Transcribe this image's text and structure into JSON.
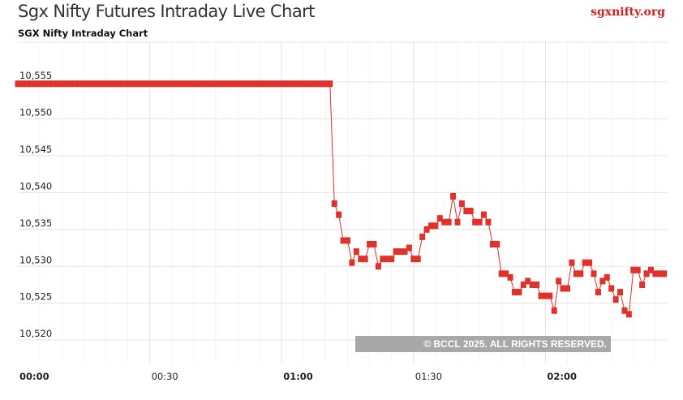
{
  "header": {
    "title": "Sgx Nifty Futures Intraday Live Chart",
    "brand": "sgxnifty.org"
  },
  "chart_data": {
    "type": "line",
    "title": "SGX Nifty Intraday Chart",
    "xlabel": "",
    "ylabel": "",
    "x_ticks": [
      "00:00",
      "00:30",
      "01:00",
      "01:30",
      "02:00"
    ],
    "y_ticks": [
      "10,520",
      "10,525",
      "10,530",
      "10,535",
      "10,540",
      "10,545",
      "10,550",
      "10,555"
    ],
    "ylim": [
      10517,
      10560
    ],
    "xlim": [
      "00:00",
      "02:28"
    ],
    "grid": true,
    "line_color": "#e0312b",
    "watermark": "© BCCL 2025. ALL RIGHTS RESERVED.",
    "flat": {
      "from": "00:00",
      "to": "01:11",
      "value": 10554.75
    },
    "points": [
      [
        "01:12",
        10538.5
      ],
      [
        "01:13",
        10537
      ],
      [
        "01:14",
        10533.5
      ],
      [
        "01:15",
        10533.5
      ],
      [
        "01:16",
        10530.5
      ],
      [
        "01:17",
        10532
      ],
      [
        "01:18",
        10531
      ],
      [
        "01:19",
        10531
      ],
      [
        "01:20",
        10533
      ],
      [
        "01:21",
        10533
      ],
      [
        "01:22",
        10530
      ],
      [
        "01:23",
        10531
      ],
      [
        "01:24",
        10531
      ],
      [
        "01:25",
        10531
      ],
      [
        "01:26",
        10532
      ],
      [
        "01:27",
        10532
      ],
      [
        "01:28",
        10532
      ],
      [
        "01:29",
        10532.5
      ],
      [
        "01:30",
        10531
      ],
      [
        "01:31",
        10531
      ],
      [
        "01:32",
        10534
      ],
      [
        "01:33",
        10535
      ],
      [
        "01:34",
        10535.5
      ],
      [
        "01:35",
        10535.5
      ],
      [
        "01:36",
        10536.5
      ],
      [
        "01:37",
        10536
      ],
      [
        "01:38",
        10536
      ],
      [
        "01:39",
        10539.5
      ],
      [
        "01:40",
        10536
      ],
      [
        "01:41",
        10538.5
      ],
      [
        "01:42",
        10537.5
      ],
      [
        "01:43",
        10537.5
      ],
      [
        "01:44",
        10536
      ],
      [
        "01:45",
        10536
      ],
      [
        "01:46",
        10537
      ],
      [
        "01:47",
        10536
      ],
      [
        "01:48",
        10533
      ],
      [
        "01:49",
        10533
      ],
      [
        "01:50",
        10529
      ],
      [
        "01:51",
        10529
      ],
      [
        "01:52",
        10528.5
      ],
      [
        "01:53",
        10526.5
      ],
      [
        "01:54",
        10526.5
      ],
      [
        "01:55",
        10527.5
      ],
      [
        "01:56",
        10528
      ],
      [
        "01:57",
        10527.5
      ],
      [
        "01:58",
        10527.5
      ],
      [
        "01:59",
        10526
      ],
      [
        "02:00",
        10526
      ],
      [
        "02:01",
        10526
      ],
      [
        "02:02",
        10524
      ],
      [
        "02:03",
        10528
      ],
      [
        "02:04",
        10527
      ],
      [
        "02:05",
        10527
      ],
      [
        "02:06",
        10530.5
      ],
      [
        "02:07",
        10529
      ],
      [
        "02:08",
        10529
      ],
      [
        "02:09",
        10530.5
      ],
      [
        "02:10",
        10530.5
      ],
      [
        "02:11",
        10529
      ],
      [
        "02:12",
        10526.5
      ],
      [
        "02:13",
        10528
      ],
      [
        "02:14",
        10528.5
      ],
      [
        "02:15",
        10527
      ],
      [
        "02:16",
        10525.5
      ],
      [
        "02:17",
        10526.5
      ],
      [
        "02:18",
        10524
      ],
      [
        "02:19",
        10523.5
      ],
      [
        "02:20",
        10529.5
      ],
      [
        "02:21",
        10529.5
      ],
      [
        "02:22",
        10527.5
      ],
      [
        "02:23",
        10529
      ],
      [
        "02:24",
        10529.5
      ],
      [
        "02:25",
        10529
      ],
      [
        "02:26",
        10529
      ],
      [
        "02:27",
        10529
      ]
    ]
  }
}
